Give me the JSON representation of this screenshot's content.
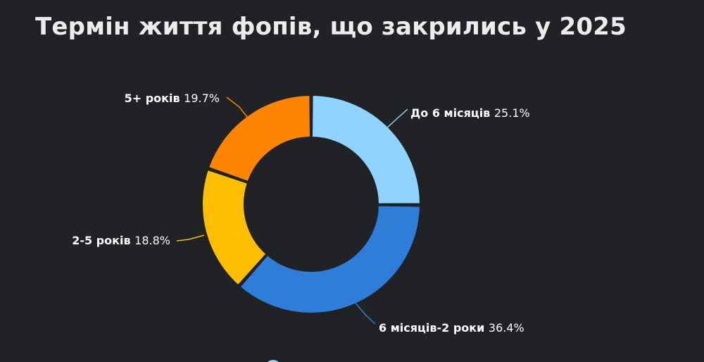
{
  "title": "Термін життя фопів, що закрились у 2025",
  "chart_data": {
    "type": "pie",
    "variant": "donut",
    "title": "Термін життя фопів, що закрились у 2025",
    "series": [
      {
        "name": "До 6 місяців",
        "value": 25.1,
        "label": "25.1%",
        "color": "#8fd3ff"
      },
      {
        "name": "6 місяців-2 роки",
        "value": 36.4,
        "label": "36.4%",
        "color": "#2e7ed9"
      },
      {
        "name": "2-5 років",
        "value": 18.8,
        "label": "18.8%",
        "color": "#ffbf00"
      },
      {
        "name": "5+ років",
        "value": 19.7,
        "label": "19.7%",
        "color": "#ff8400"
      }
    ],
    "start": "top",
    "direction": "clockwise",
    "background": "#202226"
  }
}
